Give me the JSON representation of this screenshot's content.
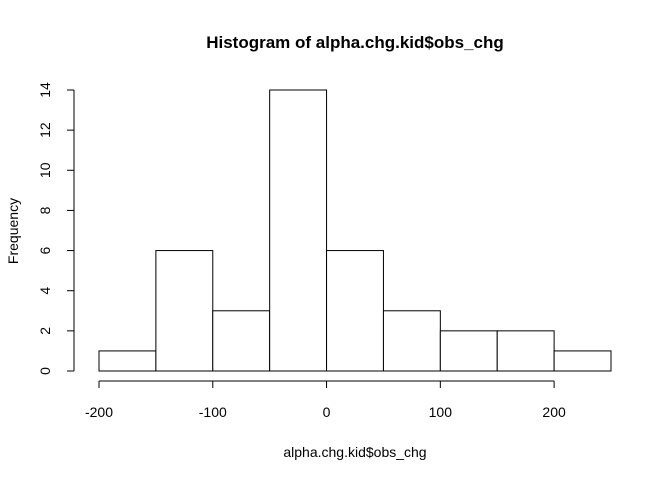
{
  "chart_data": {
    "type": "bar",
    "histogram": true,
    "title": "Histogram of alpha.chg.kid$obs_chg",
    "xlabel": "alpha.chg.kid$obs_chg",
    "ylabel": "Frequency",
    "bins": [
      {
        "from": -200,
        "to": -150,
        "count": 1
      },
      {
        "from": -150,
        "to": -100,
        "count": 6
      },
      {
        "from": -100,
        "to": -50,
        "count": 3
      },
      {
        "from": -50,
        "to": 0,
        "count": 14
      },
      {
        "from": 0,
        "to": 50,
        "count": 6
      },
      {
        "from": 50,
        "to": 100,
        "count": 3
      },
      {
        "from": 100,
        "to": 150,
        "count": 2
      },
      {
        "from": 150,
        "to": 200,
        "count": 2
      },
      {
        "from": 200,
        "to": 250,
        "count": 1
      }
    ],
    "xlim": [
      -200,
      250
    ],
    "ylim": [
      0,
      14
    ],
    "x_ticks": [
      -200,
      -100,
      0,
      100,
      200
    ],
    "x_tick_labels": [
      "-200",
      "-100",
      "0",
      "100",
      "200"
    ],
    "y_ticks": [
      0,
      2,
      4,
      6,
      8,
      10,
      12,
      14
    ],
    "y_tick_labels": [
      "0",
      "2",
      "4",
      "6",
      "8",
      "10",
      "12",
      "14"
    ],
    "grid": false,
    "bar_fill": "#ffffff",
    "bar_stroke": "#000000"
  }
}
